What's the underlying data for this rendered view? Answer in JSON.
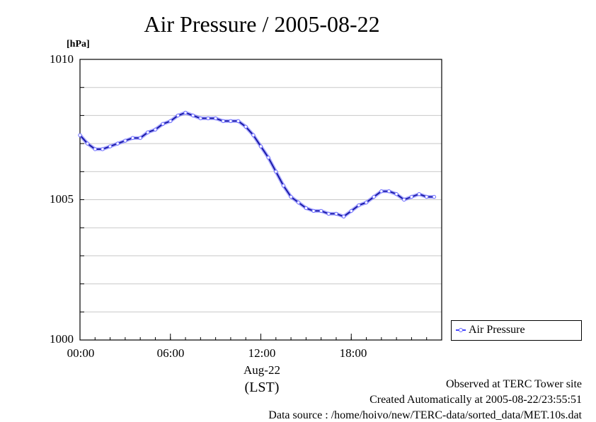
{
  "chart_data": {
    "type": "line",
    "title": "Air Pressure / 2005-08-22",
    "ylabel": "[hPa]",
    "xlabel": "(LST)",
    "date_label": "Aug-22",
    "x_ticks": [
      "00:00",
      "06:00",
      "12:00",
      "18:00"
    ],
    "y_ticks": [
      "1000",
      "1005",
      "1010"
    ],
    "ylim": [
      1000,
      1010
    ],
    "xlim": [
      "00:00",
      "24:00"
    ],
    "grid": true,
    "legend_position": "right-bottom",
    "series": [
      {
        "name": "Air Pressure",
        "color": "#4444ff",
        "x": [
          "00:00",
          "00:30",
          "01:00",
          "01:30",
          "02:00",
          "02:30",
          "03:00",
          "03:30",
          "04:00",
          "04:30",
          "05:00",
          "05:30",
          "06:00",
          "06:30",
          "07:00",
          "07:30",
          "08:00",
          "08:30",
          "09:00",
          "09:30",
          "10:00",
          "10:30",
          "11:00",
          "11:30",
          "12:00",
          "12:30",
          "13:00",
          "13:30",
          "14:00",
          "14:30",
          "15:00",
          "15:30",
          "16:00",
          "16:30",
          "17:00",
          "17:30",
          "18:00",
          "18:30",
          "19:00",
          "19:30",
          "20:00",
          "20:30",
          "21:00",
          "21:30",
          "22:00",
          "22:30",
          "23:00",
          "23:30"
        ],
        "y": [
          1007.3,
          1007.0,
          1006.8,
          1006.8,
          1006.9,
          1007.0,
          1007.1,
          1007.2,
          1007.2,
          1007.4,
          1007.5,
          1007.7,
          1007.8,
          1008.0,
          1008.1,
          1008.0,
          1007.9,
          1007.9,
          1007.9,
          1007.8,
          1007.8,
          1007.8,
          1007.6,
          1007.3,
          1006.9,
          1006.5,
          1006.0,
          1005.5,
          1005.1,
          1004.9,
          1004.7,
          1004.6,
          1004.6,
          1004.5,
          1004.5,
          1004.4,
          1004.6,
          1004.8,
          1004.9,
          1005.1,
          1005.3,
          1005.3,
          1005.2,
          1005.0,
          1005.1,
          1005.2,
          1005.1,
          1005.1
        ]
      }
    ]
  },
  "footer": {
    "line1": "Observed at TERC Tower site",
    "line2": "Created Automatically at 2005-08-22/23:55:51",
    "line3": "Data source : /home/hoivo/new/TERC-data/sorted_data/MET.10s.dat"
  }
}
